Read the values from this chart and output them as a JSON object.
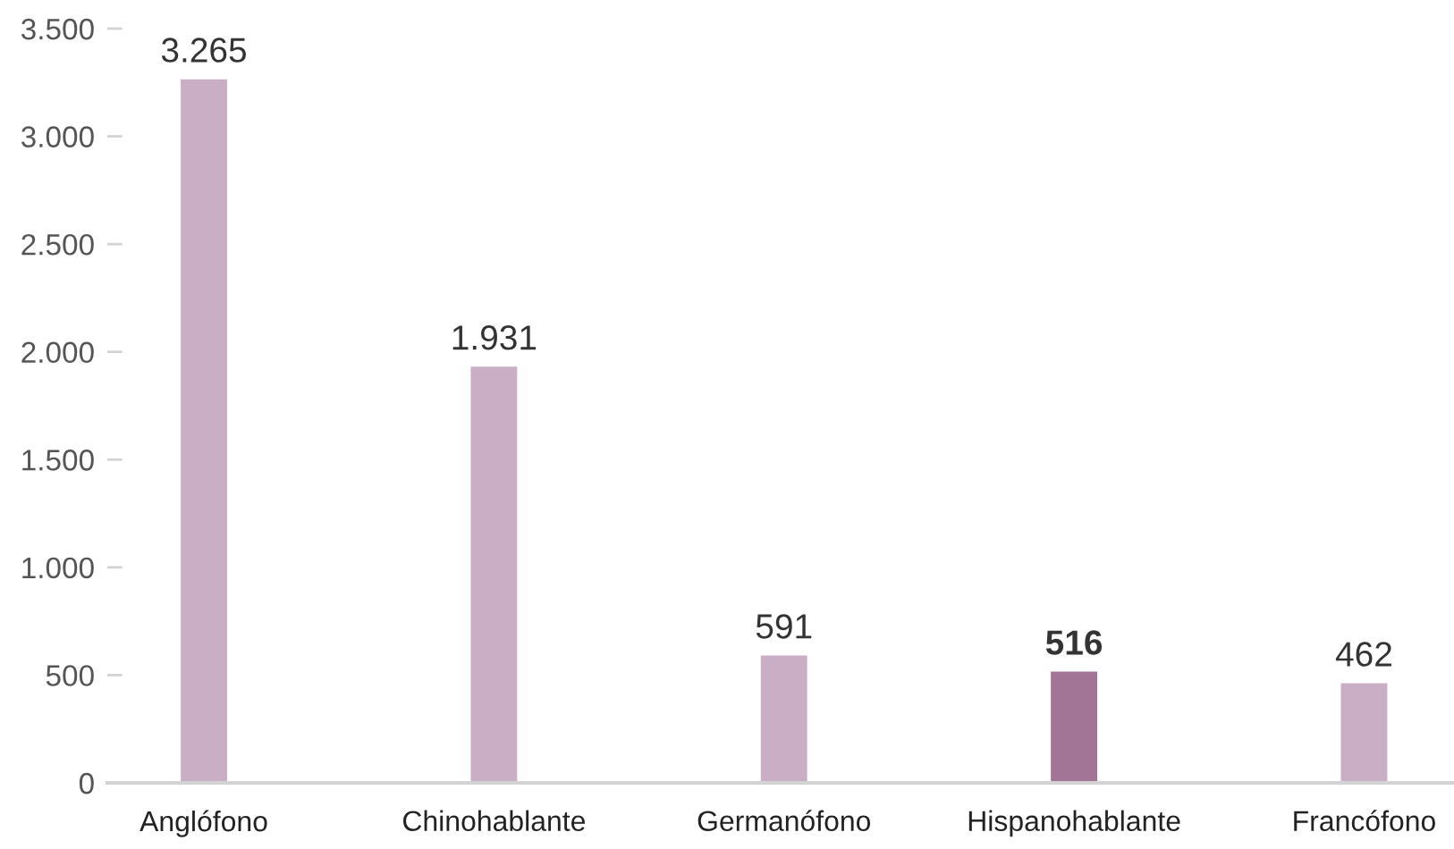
{
  "chart_data": {
    "type": "bar",
    "categories": [
      "Anglófono",
      "Chinohablante",
      "Germanófono",
      "Hispanohablante",
      "Francófono"
    ],
    "values": [
      3265,
      1931,
      591,
      516,
      462
    ],
    "colors": [
      "#c9aec5",
      "#c9aec5",
      "#c9aec5",
      "#a27597",
      "#c9aec5"
    ],
    "value_labels": [
      "3.265",
      "1.931",
      "591",
      "516",
      "462"
    ],
    "ylim": [
      0,
      3500
    ],
    "yticks": [
      0,
      500,
      {
        "value": 1000,
        "label": "1.000"
      },
      {
        "value": 1500,
        "label": "1.500"
      },
      {
        "value": 2000,
        "label": "2.000"
      },
      {
        "value": 2500,
        "label": "2.500"
      },
      {
        "value": 3000,
        "label": "3.000"
      },
      {
        "value": 3500,
        "label": "3.500"
      }
    ]
  }
}
